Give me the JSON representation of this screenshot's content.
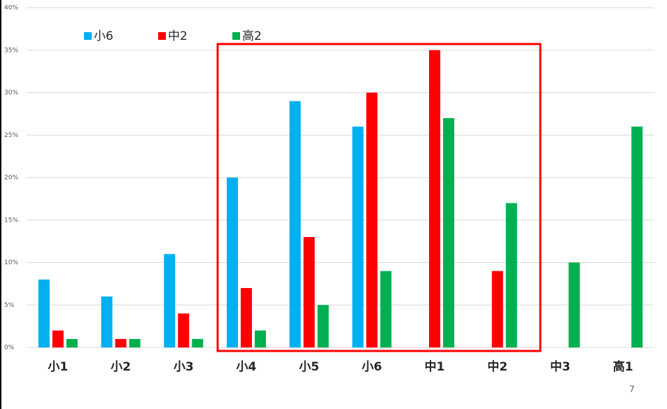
{
  "chart_data": {
    "type": "bar",
    "categories": [
      "小1",
      "小2",
      "小3",
      "小4",
      "小5",
      "小6",
      "中1",
      "中2",
      "中3",
      "高1"
    ],
    "series": [
      {
        "name": "小6",
        "color": "#00b0f0",
        "values": [
          8,
          6,
          11,
          20,
          29,
          26,
          null,
          null,
          null,
          null
        ]
      },
      {
        "name": "中2",
        "color": "#ff0000",
        "values": [
          2,
          1,
          4,
          7,
          13,
          30,
          35,
          9,
          null,
          null
        ]
      },
      {
        "name": "高2",
        "color": "#00b050",
        "values": [
          1,
          1,
          1,
          2,
          5,
          9,
          27,
          17,
          10,
          26
        ]
      }
    ],
    "ylim": [
      0,
      40
    ],
    "yticks": [
      {
        "value": 0,
        "label": "0%"
      },
      {
        "value": 5,
        "label": "5%"
      },
      {
        "value": 10,
        "label": "10%"
      },
      {
        "value": 15,
        "label": "15%"
      },
      {
        "value": 20,
        "label": "20%"
      },
      {
        "value": 25,
        "label": "25%"
      },
      {
        "value": 30,
        "label": "30%"
      },
      {
        "value": 35,
        "label": "35%"
      },
      {
        "value": 40,
        "label": "40%"
      }
    ],
    "grid": true
  },
  "page_number": "7"
}
